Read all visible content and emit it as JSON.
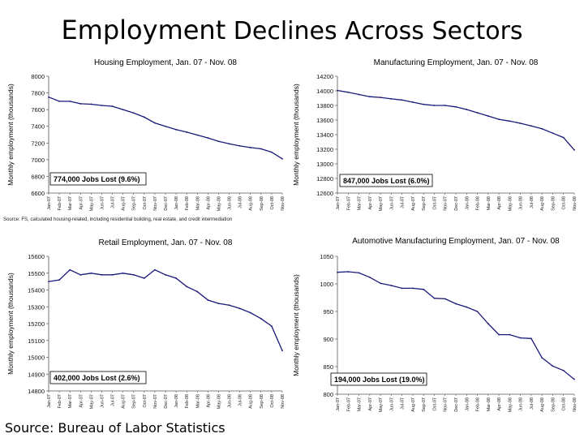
{
  "page": {
    "title_lead": "Employment",
    "title_rest": " Declines Across Sectors",
    "source": "Source: Bureau of Labor Statistics",
    "housing_note": "Source: FS, calculated housing-related, including residential building, real estate, and credit intermediation"
  },
  "months": [
    "Jan-07",
    "Feb-07",
    "Mar-07",
    "Apr-07",
    "May-07",
    "Jun-07",
    "Jul-07",
    "Aug-07",
    "Sep-07",
    "Oct-07",
    "Nov-07",
    "Dec-07",
    "Jan-08",
    "Feb-08",
    "Mar-08",
    "Apr-08",
    "May-08",
    "Jun-08",
    "Jul-08",
    "Aug-08",
    "Sep-08",
    "Oct-08",
    "Nov-08"
  ],
  "chart_data": [
    {
      "type": "line",
      "title": "Housing Employment, Jan. 07 - Nov. 08",
      "ylabel": "Monthly employment (thousands)",
      "xlabel": "",
      "ylim": [
        6600,
        8000
      ],
      "yticks": [
        6600,
        6800,
        7000,
        7200,
        7400,
        7600,
        7800,
        8000
      ],
      "annotation": "774,000 Jobs Lost (9.6%)",
      "color": "#1a1a7a",
      "values": [
        7750,
        7700,
        7700,
        7670,
        7665,
        7650,
        7640,
        7600,
        7560,
        7510,
        7440,
        7400,
        7360,
        7330,
        7295,
        7260,
        7220,
        7190,
        7165,
        7145,
        7130,
        7090,
        7010
      ]
    },
    {
      "type": "line",
      "title": "Manufacturing Employment, Jan. 07 - Nov. 08",
      "ylabel": "Monthly employment (thousands)",
      "xlabel": "",
      "ylim": [
        12600,
        14200
      ],
      "yticks": [
        12600,
        12800,
        13000,
        13200,
        13400,
        13600,
        13800,
        14000,
        14200
      ],
      "annotation": "847,000 Jobs Lost (6.0%)",
      "color": "#1a1a7a",
      "values": [
        14005,
        13980,
        13950,
        13920,
        13910,
        13890,
        13875,
        13845,
        13815,
        13800,
        13800,
        13780,
        13745,
        13700,
        13655,
        13610,
        13585,
        13555,
        13520,
        13480,
        13420,
        13360,
        13190
      ]
    },
    {
      "type": "line",
      "title": "Retail Employment, Jan. 07 - Nov. 08",
      "ylabel": "Monthly employment (thousands)",
      "xlabel": "",
      "ylim": [
        14800,
        15600
      ],
      "yticks": [
        14800,
        14900,
        15000,
        15100,
        15200,
        15300,
        15400,
        15500,
        15600
      ],
      "annotation": "402,000 Jobs Lost (2.6%)",
      "color": "#1a1a7a",
      "values": [
        15450,
        15460,
        15520,
        15490,
        15500,
        15490,
        15490,
        15500,
        15490,
        15470,
        15520,
        15490,
        15470,
        15420,
        15390,
        15340,
        15320,
        15310,
        15290,
        15265,
        15230,
        15185,
        15040
      ]
    },
    {
      "type": "line",
      "title": "Automotive Manufacturing Employment, Jan. 07 - Nov. 08",
      "ylabel": "Monthly employment (thousands)",
      "xlabel": "",
      "ylim": [
        800,
        1050
      ],
      "yticks": [
        800,
        850,
        900,
        950,
        1000,
        1050
      ],
      "annotation": "194,000 Jobs Lost (19.0%)",
      "color": "#1a1a7a",
      "values": [
        1021,
        1022,
        1020,
        1012,
        1001,
        997,
        992,
        992,
        990,
        974,
        973,
        964,
        958,
        950,
        928,
        908,
        908,
        902,
        901,
        866,
        851,
        843,
        827
      ]
    }
  ]
}
